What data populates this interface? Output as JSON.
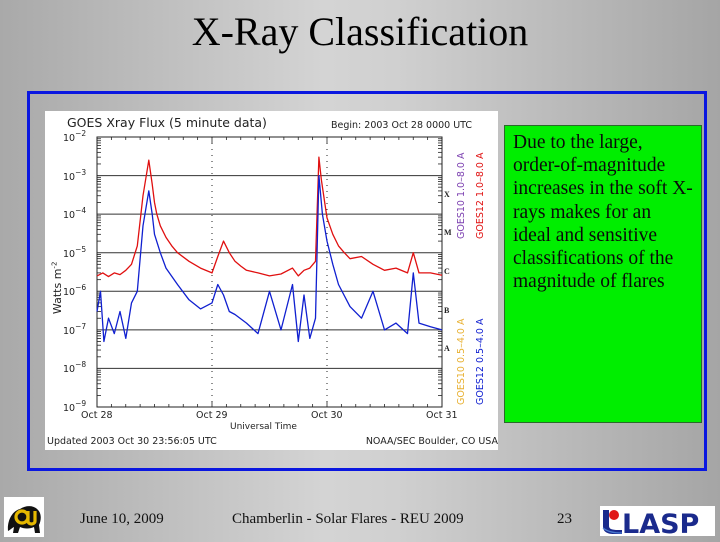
{
  "slide": {
    "title": "X-Ray Classification",
    "text_box": "Due to the large, order-of-magnitude increases in the soft X-rays makes for an ideal and sensitive classifications of the magnitude of flares",
    "colors": {
      "frame_border": "#0a17e0",
      "text_box_bg": "#00ee00"
    }
  },
  "footer": {
    "date": "June 10, 2009",
    "presentation": "Chamberlin - Solar Flares - REU 2009",
    "page_number": "23",
    "left_logo": "cu-buffalo-logo",
    "right_logo": "lasp-logo",
    "right_logo_text": "LASP"
  },
  "plot": {
    "header": "GOES Xray Flux (5 minute data)",
    "begin": "Begin:  2003 Oct 28 0000 UTC",
    "updated": "Updated 2003 Oct 30 23:56:05 UTC",
    "credit": "NOAA/SEC Boulder, CO USA",
    "ylabel_base": "Watts m",
    "ylabel_exp": "-2",
    "xlabel": "Universal Time",
    "ytick_exps": [
      "-2",
      "-3",
      "-4",
      "-5",
      "-6",
      "-7",
      "-8",
      "-9"
    ],
    "xticks": [
      "Oct 28",
      "Oct 29",
      "Oct 30",
      "Oct 31"
    ],
    "classes": [
      "X",
      "M",
      "C",
      "B",
      "A"
    ],
    "legend": {
      "goes10_long": "GOES10 1.0–8.0 A",
      "goes12_long": "GOES12 1.0–8.0 A",
      "goes10_short": "GOES10 0.5–4.0 A",
      "goes12_short": "GOES12 0.5–4.0 A"
    },
    "series_colors": {
      "goes10_long": "#7b3fb0",
      "goes12_long": "#e01010",
      "goes10_short": "#e8b030",
      "goes12_short": "#1020d0"
    }
  },
  "chart_data": {
    "type": "line",
    "title": "GOES Xray Flux (5 minute data)",
    "subtitle": "Begin: 2003 Oct 28 0000 UTC",
    "xlabel": "Universal Time",
    "ylabel": "Watts m^-2",
    "yscale": "log",
    "ylim": [
      1e-09,
      0.01
    ],
    "xlim": [
      0,
      3
    ],
    "x_units": "days since 2003 Oct 28 00:00 UTC",
    "xtick_labels": [
      "Oct 28",
      "Oct 29",
      "Oct 30",
      "Oct 31"
    ],
    "ytick_labels": [
      "10^-2",
      "10^-3",
      "10^-4",
      "10^-5",
      "10^-6",
      "10^-7",
      "10^-8",
      "10^-9"
    ],
    "grid": "horizontal at each decade",
    "flare_classes": {
      "X": 0.0001,
      "M": 1e-05,
      "C": 1e-06,
      "B": 1e-07,
      "A": 1e-08
    },
    "legend_position": "right, rotated vertical",
    "series": [
      {
        "name": "GOES12 1.0-8.0 A",
        "color": "#e01010",
        "x": [
          0,
          0.05,
          0.1,
          0.15,
          0.2,
          0.25,
          0.3,
          0.35,
          0.4,
          0.45,
          0.48,
          0.5,
          0.52,
          0.55,
          0.6,
          0.65,
          0.7,
          0.8,
          0.9,
          1.0,
          1.05,
          1.1,
          1.15,
          1.2,
          1.25,
          1.3,
          1.4,
          1.5,
          1.6,
          1.7,
          1.75,
          1.8,
          1.85,
          1.9,
          1.93,
          1.95,
          1.98,
          2.0,
          2.05,
          2.1,
          2.15,
          2.2,
          2.3,
          2.4,
          2.5,
          2.6,
          2.7,
          2.75,
          2.8,
          2.9,
          3.0
        ],
        "y": [
          2.5e-06,
          3e-06,
          2.4e-06,
          3e-06,
          2.7e-06,
          3.5e-06,
          5e-06,
          1.5e-05,
          0.0003,
          0.0025,
          0.0006,
          0.0002,
          0.0001,
          5e-05,
          2.5e-05,
          1.5e-05,
          1e-05,
          6e-06,
          4e-06,
          3e-06,
          8e-06,
          2e-05,
          1e-05,
          6e-06,
          4.5e-06,
          3.5e-06,
          3e-06,
          2.5e-06,
          2.8e-06,
          4e-06,
          2.5e-06,
          3.5e-06,
          4e-06,
          6e-06,
          0.003,
          0.0008,
          0.0002,
          8e-05,
          3e-05,
          1.5e-05,
          1e-05,
          7e-06,
          8e-06,
          5e-06,
          3.5e-06,
          4e-06,
          3e-06,
          1e-05,
          3e-06,
          3e-06,
          2.6e-06
        ]
      },
      {
        "name": "GOES12 0.5-4.0 A",
        "color": "#1020d0",
        "x": [
          0,
          0.03,
          0.06,
          0.1,
          0.15,
          0.2,
          0.25,
          0.3,
          0.35,
          0.4,
          0.45,
          0.48,
          0.5,
          0.55,
          0.6,
          0.7,
          0.8,
          0.9,
          1.0,
          1.05,
          1.1,
          1.15,
          1.2,
          1.3,
          1.4,
          1.5,
          1.6,
          1.7,
          1.75,
          1.8,
          1.85,
          1.9,
          1.93,
          1.96,
          2.0,
          2.05,
          2.1,
          2.2,
          2.3,
          2.4,
          2.5,
          2.6,
          2.7,
          2.75,
          2.8,
          2.9,
          3.0
        ],
        "y": [
          3e-07,
          1e-06,
          5e-08,
          2e-07,
          8e-08,
          3e-07,
          6e-08,
          5e-07,
          1e-06,
          5e-05,
          0.0004,
          0.0001,
          3e-05,
          1e-05,
          4e-06,
          1.5e-06,
          6e-07,
          3.5e-07,
          5e-07,
          1.5e-06,
          8e-07,
          3e-07,
          2.5e-07,
          1.5e-07,
          8e-08,
          1e-06,
          1e-07,
          1.5e-06,
          5e-08,
          8e-07,
          6e-08,
          2e-07,
          0.001,
          0.0001,
          2e-05,
          5e-06,
          1.5e-06,
          4e-07,
          2e-07,
          1e-06,
          1e-07,
          1.5e-07,
          8e-08,
          3e-06,
          1.5e-07,
          1.2e-07,
          1e-07
        ]
      },
      {
        "name": "GOES10 1.0-8.0 A",
        "color": "#7b3fb0",
        "x": [],
        "y": []
      },
      {
        "name": "GOES10 0.5-4.0 A",
        "color": "#e8b030",
        "x": [],
        "y": []
      }
    ]
  }
}
